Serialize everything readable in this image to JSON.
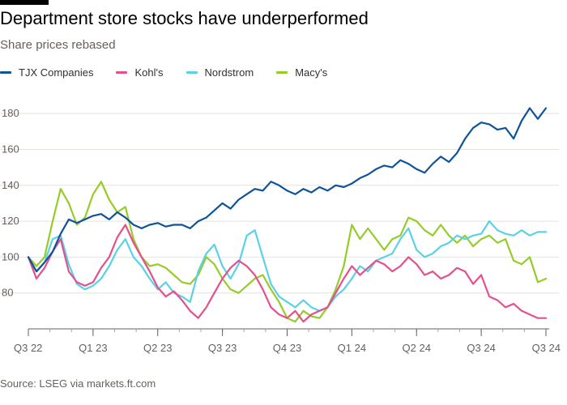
{
  "header": {
    "title": "Department store stocks have underperformed",
    "subtitle": "Share prices rebased"
  },
  "footer": {
    "source": "Source: LSEG via markets.ft.com"
  },
  "chart_data": {
    "type": "line",
    "title": "Department store stocks have underperformed",
    "subtitle": "Share prices rebased",
    "xlabel": "",
    "ylabel": "",
    "grid": "horizontal",
    "legend_position": "top-left",
    "ylim": [
      60,
      190
    ],
    "yticks": [
      80,
      100,
      120,
      140,
      160,
      180
    ],
    "xlim": [
      0,
      8.05
    ],
    "xticks": [
      {
        "x": 0,
        "label": "Q3 22"
      },
      {
        "x": 1,
        "label": "Q1 23"
      },
      {
        "x": 2,
        "label": "Q2 23"
      },
      {
        "x": 3,
        "label": "Q3 23"
      },
      {
        "x": 4,
        "label": "Q4 23"
      },
      {
        "x": 5,
        "label": "Q1 24"
      },
      {
        "x": 6,
        "label": "Q2 24"
      },
      {
        "x": 7,
        "label": "Q3 24"
      },
      {
        "x": 8,
        "label": "Q3 24"
      }
    ],
    "x_unit": "quarters since Q3 2022",
    "x": [
      0,
      0.125,
      0.25,
      0.375,
      0.5,
      0.625,
      0.75,
      0.875,
      1.0,
      1.125,
      1.25,
      1.375,
      1.5,
      1.625,
      1.75,
      1.875,
      2.0,
      2.125,
      2.25,
      2.375,
      2.5,
      2.625,
      2.75,
      2.875,
      3.0,
      3.125,
      3.25,
      3.375,
      3.5,
      3.625,
      3.75,
      3.875,
      4.0,
      4.125,
      4.25,
      4.375,
      4.5,
      4.625,
      4.75,
      4.875,
      5.0,
      5.125,
      5.25,
      5.375,
      5.5,
      5.625,
      5.75,
      5.875,
      6.0,
      6.125,
      6.25,
      6.375,
      6.5,
      6.625,
      6.75,
      6.875,
      7.0,
      7.125,
      7.25,
      7.375,
      7.5,
      7.625,
      7.75,
      7.875,
      8.0
    ],
    "series": [
      {
        "name": "TJX Companies",
        "color": "#0f5499",
        "values": [
          100,
          92,
          97,
          103,
          113,
          121,
          119,
          121,
          123,
          124,
          121,
          125,
          122,
          118,
          116,
          118,
          119,
          117,
          118,
          118,
          116,
          120,
          122,
          126,
          130,
          127,
          132,
          135,
          138,
          137,
          142,
          140,
          137,
          135,
          138,
          136,
          139,
          137,
          140,
          139,
          141,
          144,
          146,
          149,
          151,
          150,
          154,
          152,
          149,
          147,
          152,
          156,
          153,
          158,
          166,
          172,
          175,
          174,
          171,
          172,
          166,
          176,
          183,
          177,
          183
        ]
      },
      {
        "name": "Kohl's",
        "color": "#e3508d",
        "values": [
          100,
          88,
          94,
          103,
          110,
          92,
          86,
          84,
          86,
          94,
          100,
          111,
          118,
          108,
          100,
          92,
          83,
          78,
          81,
          76,
          70,
          66,
          72,
          80,
          88,
          94,
          98,
          95,
          90,
          82,
          72,
          68,
          66,
          70,
          64,
          68,
          70,
          72,
          80,
          88,
          95,
          90,
          94,
          98,
          96,
          92,
          95,
          100,
          96,
          90,
          92,
          88,
          90,
          94,
          92,
          85,
          90,
          78,
          76,
          72,
          74,
          70,
          68,
          66,
          66
        ]
      },
      {
        "name": "Nordstrom",
        "color": "#5ad2e6",
        "values": [
          100,
          92,
          97,
          110,
          112,
          96,
          85,
          82,
          84,
          88,
          95,
          104,
          110,
          100,
          95,
          88,
          82,
          86,
          80,
          78,
          75,
          92,
          102,
          107,
          95,
          88,
          96,
          112,
          115,
          100,
          85,
          78,
          75,
          72,
          76,
          72,
          70,
          72,
          78,
          82,
          88,
          95,
          92,
          98,
          100,
          102,
          110,
          116,
          104,
          100,
          102,
          106,
          108,
          112,
          110,
          112,
          113,
          120,
          115,
          113,
          112,
          115,
          112,
          114,
          114
        ]
      },
      {
        "name": "Macy's",
        "color": "#96cc28",
        "values": [
          100,
          95,
          100,
          120,
          138,
          130,
          118,
          122,
          135,
          142,
          132,
          125,
          128,
          110,
          100,
          95,
          96,
          94,
          90,
          86,
          85,
          90,
          100,
          96,
          88,
          82,
          80,
          84,
          88,
          90,
          82,
          75,
          66,
          64,
          70,
          67,
          66,
          72,
          82,
          95,
          118,
          110,
          116,
          110,
          104,
          110,
          112,
          122,
          120,
          115,
          112,
          118,
          112,
          108,
          112,
          106,
          110,
          112,
          108,
          110,
          98,
          96,
          100,
          86,
          88
        ]
      }
    ]
  }
}
